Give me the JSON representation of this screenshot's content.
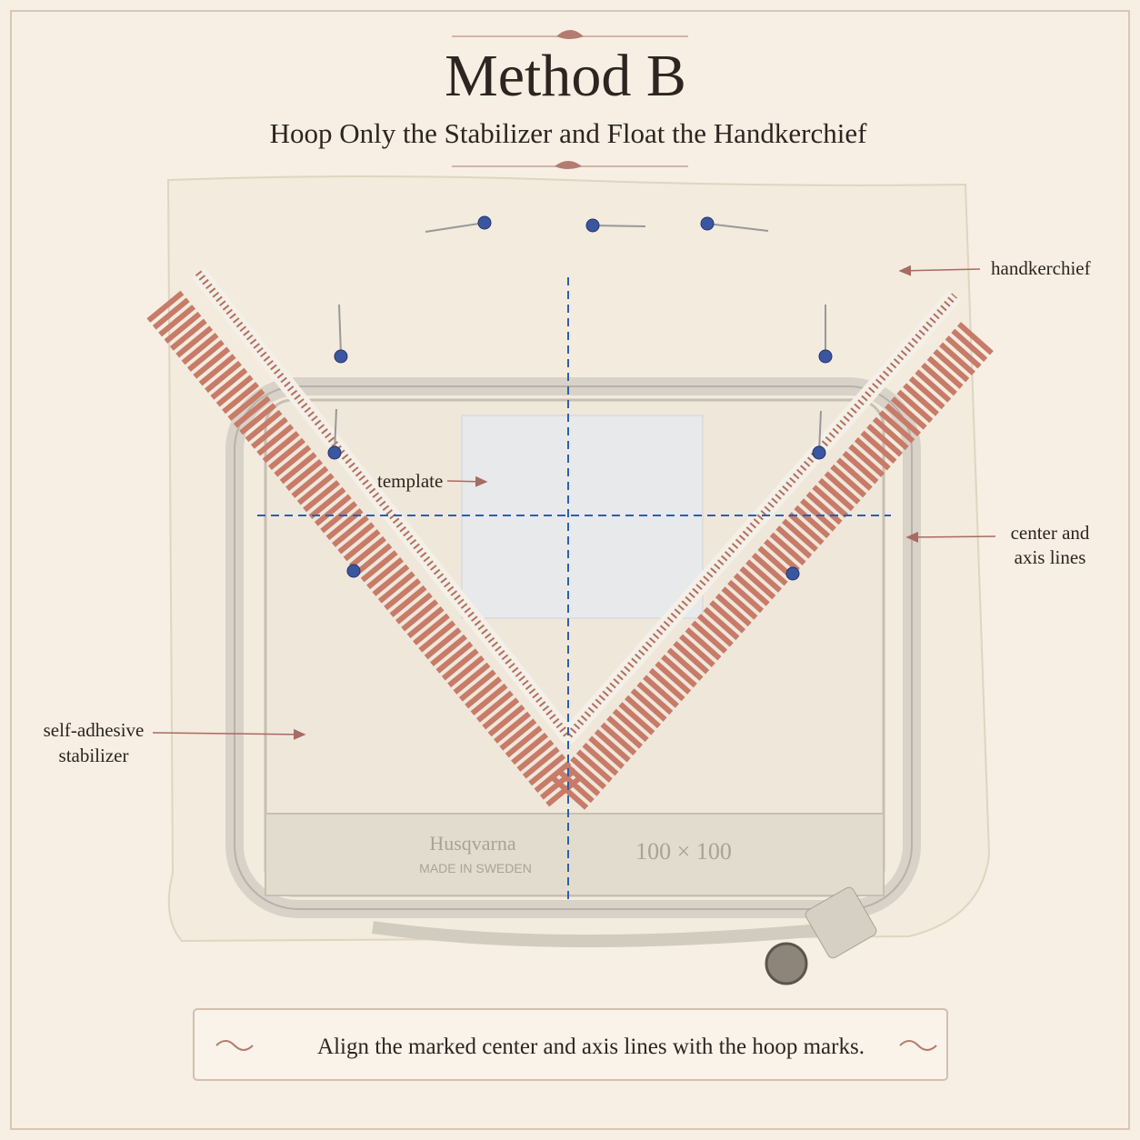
{
  "header": {
    "title": "Method B",
    "subtitle": "Hoop Only the Stabilizer and Float the Handkerchief"
  },
  "labels": [
    {
      "lines": [
        "handkerchief"
      ]
    },
    {
      "lines": [
        "template"
      ]
    },
    {
      "lines": [
        "center and",
        "axis lines"
      ]
    },
    {
      "lines": [
        "self-adhesive",
        "stabilizer"
      ]
    }
  ],
  "hoop": {
    "brand": "Husqvarna",
    "origin": "MADE IN SWEDEN",
    "size": "100 × 100"
  },
  "caption": "Align the marked center and axis lines with the hoop marks."
}
